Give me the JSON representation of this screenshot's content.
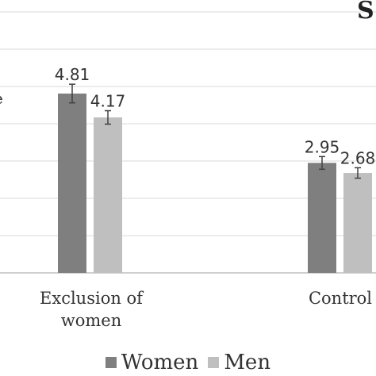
{
  "chart_data": {
    "type": "bar",
    "title": "S",
    "ylabel": "e",
    "categories": [
      "Exclusion of women",
      "Control"
    ],
    "category_lines": [
      [
        "Exclusion of",
        "women"
      ],
      [
        "Control",
        ""
      ]
    ],
    "series": [
      {
        "name": "Women",
        "values": [
          4.81,
          2.95
        ],
        "errors": [
          0.25,
          0.17
        ],
        "labels": [
          "4.81",
          "2.95"
        ]
      },
      {
        "name": "Men",
        "values": [
          4.17,
          2.68
        ],
        "errors": [
          0.18,
          0.14
        ],
        "labels": [
          "4.17",
          "2.68"
        ]
      }
    ],
    "ylim": [
      0,
      7
    ],
    "grid": true,
    "legend_position": "bottom"
  },
  "colors": {
    "women": "#7f7f7f",
    "men": "#bfbfbf",
    "grid": "#d9d9d9",
    "axis": "#bfbfbf",
    "text": "#333333"
  }
}
